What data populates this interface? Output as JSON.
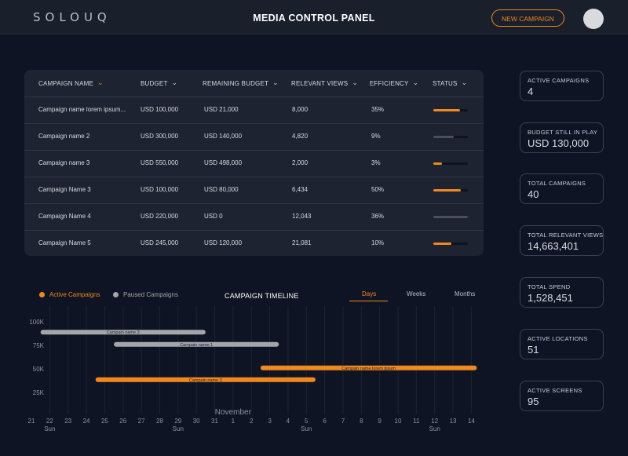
{
  "header": {
    "logo": "SOLOUQ",
    "title": "MEDIA CONTROL PANEL",
    "new_campaign_label": "NEW CAMPAIGN"
  },
  "colors": {
    "accent": "#f0881e",
    "paused": "#a4a6ab",
    "track": "#0f131c",
    "background": "#0e1423",
    "card": "#1e2331"
  },
  "table": {
    "columns": [
      "CAMPAIGN NAME",
      "BUDGET",
      "REMAINING BUDGET",
      "RELEVANT VIEWS",
      "EFFICIENCY",
      "STATUS"
    ],
    "rows": [
      {
        "name": "Campaign name lorem ipsum...",
        "budget": "USD  100,000",
        "remaining": "USD  21,000",
        "views": "8,000",
        "efficiency": "35%",
        "status_fraction": 0.78,
        "status_color": "#f0881e"
      },
      {
        "name": "Campaign name 2",
        "budget": "USD  300,000",
        "remaining": "USD  140,000",
        "views": "4,820",
        "efficiency": "9%",
        "status_fraction": 0.6,
        "status_color": "#4a4f5a"
      },
      {
        "name": "Campaign name 3",
        "budget": "USD  550,000",
        "remaining": "USD  498,000",
        "views": "2,000",
        "efficiency": "3%",
        "status_fraction": 0.25,
        "status_color": "#f0881e"
      },
      {
        "name": "Campaign Name 3",
        "budget": "USD  100,000",
        "remaining": "USD  80,000",
        "views": "6,434",
        "efficiency": "50%",
        "status_fraction": 0.8,
        "status_color": "#f0881e"
      },
      {
        "name": "Campaign Name 4",
        "budget": "USD  220,000",
        "remaining": "USD  0",
        "views": "12,043",
        "efficiency": "36%",
        "status_fraction": 1.0,
        "status_color": "#4a4f5a"
      },
      {
        "name": "Campaign Name 5",
        "budget": "USD  245,000",
        "remaining": "USD  120,000",
        "views": "21,081",
        "efficiency": "10%",
        "status_fraction": 0.52,
        "status_color": "#f0881e"
      }
    ]
  },
  "stats": [
    {
      "label": "ACTIVE CAMPAIGNS",
      "value": "4"
    },
    {
      "label": "BUDGET STILL IN PLAY",
      "value": "USD 130,000"
    },
    {
      "label": "TOTAL CAMPAIGNS",
      "value": "40"
    },
    {
      "label": "TOTAL RELEVANT VIEWS",
      "value": "14,663,401"
    },
    {
      "label": "TOTAL SPEND",
      "value": "1,528,451"
    },
    {
      "label": "ACTIVE LOCATIONS",
      "value": "51"
    },
    {
      "label": "ACTIVE SCREENS",
      "value": "95"
    }
  ],
  "timeline": {
    "title": "CAMPAIGN TIMELINE",
    "legend": {
      "active": "Active Campaigns",
      "paused": "Paused Campaigns"
    },
    "tabs": [
      "Days",
      "Weeks",
      "Months"
    ],
    "active_tab": "Days",
    "month_label": "November"
  },
  "chart_data": {
    "type": "gantt",
    "title": "CAMPAIGN TIMELINE",
    "x_ticks": [
      "21",
      "22",
      "23",
      "24",
      "25",
      "26",
      "27",
      "28",
      "29",
      "30",
      "31",
      "1",
      "2",
      "3",
      "4",
      "5",
      "6",
      "7",
      "8",
      "9",
      "10",
      "11",
      "12",
      "13",
      "14"
    ],
    "x_sublabels": [
      {
        "tick": 1,
        "text": "Sun"
      },
      {
        "tick": 8,
        "text": "Sun"
      },
      {
        "tick": 15,
        "text": "Sun"
      },
      {
        "tick": 22,
        "text": "Sun"
      }
    ],
    "y_ticks": [
      {
        "value": 25000,
        "label": "25K"
      },
      {
        "value": 50000,
        "label": "50K"
      },
      {
        "value": 75000,
        "label": "75K"
      },
      {
        "value": 100000,
        "label": "100K"
      }
    ],
    "ylim": [
      10000,
      110000
    ],
    "series": [
      {
        "name": "Campain name 3",
        "status": "paused",
        "start": 0.5,
        "end": 9.5,
        "y": 89000
      },
      {
        "name": "Campain name 1",
        "status": "paused",
        "start": 4.5,
        "end": 13.5,
        "y": 76000
      },
      {
        "name": "Campain name lorem ipsum",
        "status": "active",
        "start": 12.5,
        "end": 24.3,
        "y": 51000
      },
      {
        "name": "Campain name 2",
        "status": "active",
        "start": 3.5,
        "end": 15.5,
        "y": 38500
      }
    ]
  }
}
